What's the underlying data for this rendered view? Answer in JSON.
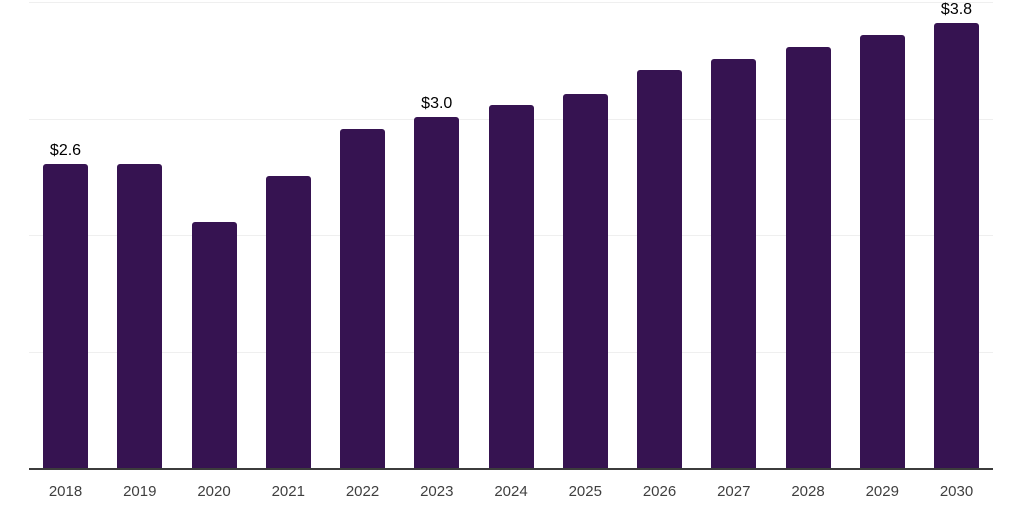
{
  "chart_data": {
    "type": "bar",
    "title": "",
    "xlabel": "",
    "ylabel": "",
    "categories": [
      "2018",
      "2019",
      "2020",
      "2021",
      "2022",
      "2023",
      "2024",
      "2025",
      "2026",
      "2027",
      "2028",
      "2029",
      "2030"
    ],
    "values": [
      2.6,
      2.6,
      2.1,
      2.5,
      2.9,
      3.0,
      3.1,
      3.2,
      3.4,
      3.5,
      3.6,
      3.7,
      3.8
    ],
    "bar_labels": {
      "2018": "$2.6",
      "2023": "$3.0",
      "2030": "$3.8"
    },
    "ylim": [
      0,
      4
    ],
    "gridline_values": [
      1,
      2,
      3,
      4
    ],
    "grid": "horizontal-only",
    "legend_position": "none",
    "y_tick_labels_visible": false,
    "colors": {
      "bar": "#361351",
      "grid": "#efefef",
      "axis": "#3c3c3c",
      "tick_label": "#3f3f3f",
      "value_label": "#000000",
      "background": "#ffffff"
    }
  }
}
